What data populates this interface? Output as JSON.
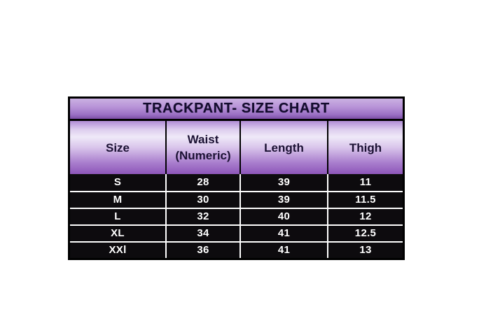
{
  "page": {
    "background_color": "#ffffff"
  },
  "size_chart": {
    "title": "TRACKPANT- SIZE CHART",
    "headers": {
      "size": "Size",
      "waist_line1": "Waist",
      "waist_line2": "(Numeric)",
      "length": "Length",
      "thigh": "Thigh"
    },
    "rows": [
      {
        "size": "S",
        "waist": "28",
        "length": "39",
        "thigh": "11"
      },
      {
        "size": "M",
        "waist": "30",
        "length": "39",
        "thigh": "11.5"
      },
      {
        "size": "L",
        "waist": "32",
        "length": "40",
        "thigh": "12"
      },
      {
        "size": "XL",
        "waist": "34",
        "length": "41",
        "thigh": "12.5"
      },
      {
        "size": "XXl",
        "waist": "36",
        "length": "41",
        "thigh": "13"
      }
    ],
    "colors": {
      "title_text": "#140c2e",
      "header_text": "#1b1133",
      "data_text": "#ffffff",
      "data_background": "#0d0b0e",
      "border": "#000000",
      "title_gradient_top": "#cab0e2",
      "title_gradient_bottom": "#7d4da5",
      "header_gradient_top": "#b18cd6",
      "header_gradient_light": "#efe9f8",
      "header_gradient_bottom": "#8d56b9"
    }
  },
  "chart_data": {
    "type": "table",
    "title": "TRACKPANT- SIZE CHART",
    "columns": [
      "Size",
      "Waist (Numeric)",
      "Length",
      "Thigh"
    ],
    "rows": [
      [
        "S",
        "28",
        "39",
        "11"
      ],
      [
        "M",
        "30",
        "39",
        "11.5"
      ],
      [
        "L",
        "32",
        "40",
        "12"
      ],
      [
        "XL",
        "34",
        "41",
        "12.5"
      ],
      [
        "XXl",
        "36",
        "41",
        "13"
      ]
    ]
  }
}
